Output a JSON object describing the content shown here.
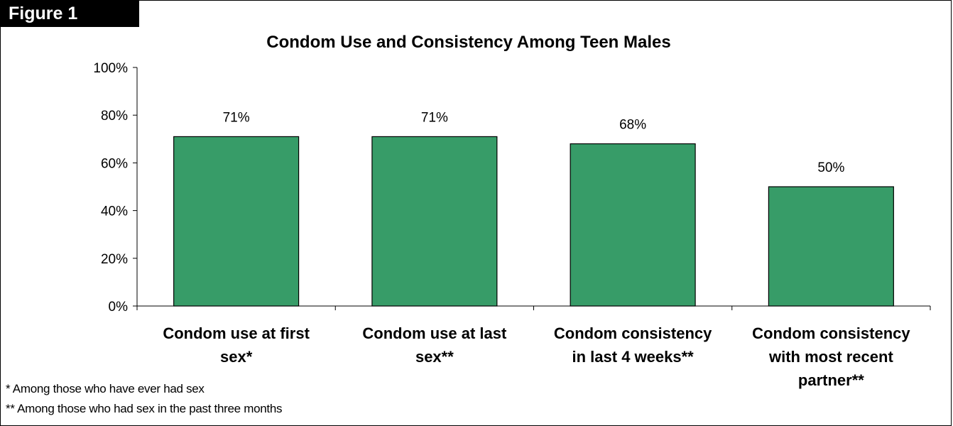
{
  "figure_label": "Figure 1",
  "footnotes": [
    "* Among those who have ever had sex",
    "** Among those who had sex in the past three months"
  ],
  "chart_data": {
    "type": "bar",
    "title": "Condom Use and Consistency Among Teen Males",
    "categories": [
      [
        "Condom use at first",
        "sex*"
      ],
      [
        "Condom use at last",
        "sex**"
      ],
      [
        "Condom consistency",
        "in last 4 weeks**"
      ],
      [
        "Condom consistency",
        "with most recent",
        "partner**"
      ]
    ],
    "values": [
      71,
      71,
      68,
      50
    ],
    "data_labels": [
      "71%",
      "71%",
      "68%",
      "50%"
    ],
    "yticks": [
      "0%",
      "20%",
      "40%",
      "60%",
      "80%",
      "100%"
    ],
    "ylim": [
      0,
      100
    ],
    "xlabel": "",
    "ylabel": "",
    "bar_color": "#379c68",
    "grid": false,
    "legend": "none"
  }
}
